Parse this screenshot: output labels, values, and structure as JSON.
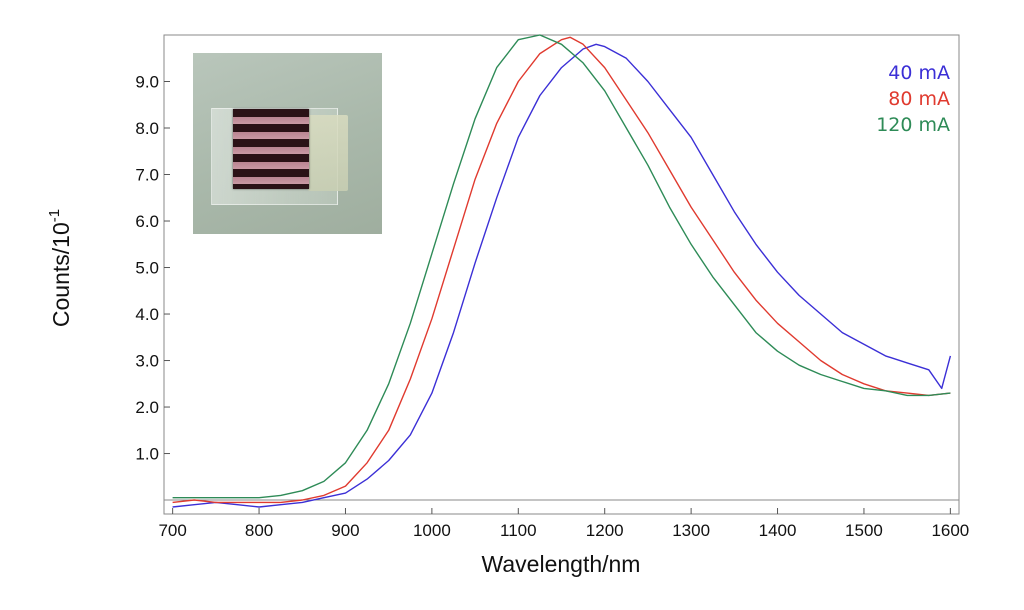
{
  "chart_data": {
    "type": "line",
    "xlabel": "Wavelength/nm",
    "ylabel_base": "Counts/10",
    "ylabel_exponent": "-1",
    "xlim": [
      690,
      1610
    ],
    "ylim": [
      -0.3,
      10.0
    ],
    "x_ticks": [
      700,
      800,
      900,
      1000,
      1100,
      1200,
      1300,
      1400,
      1500,
      1600
    ],
    "x_tick_labels": [
      "700",
      "800",
      "900",
      "1000",
      "1100",
      "1200",
      "1300",
      "1400",
      "1500",
      "1600"
    ],
    "y_ticks": [
      1,
      2,
      3,
      4,
      5,
      6,
      7,
      8,
      9
    ],
    "y_tick_labels": [
      "1.0",
      "2.0",
      "3.0",
      "4.0",
      "5.0",
      "6.0",
      "7.0",
      "8.0",
      "9.0"
    ],
    "baseline_y": 0,
    "legend_position": "top-right",
    "series": [
      {
        "name": "40 mA",
        "color": "#3b2fd6",
        "x": [
          700,
          725,
          750,
          775,
          800,
          825,
          850,
          875,
          900,
          925,
          950,
          975,
          1000,
          1025,
          1050,
          1075,
          1100,
          1125,
          1150,
          1175,
          1190,
          1200,
          1225,
          1250,
          1275,
          1300,
          1325,
          1350,
          1375,
          1400,
          1425,
          1450,
          1475,
          1500,
          1525,
          1550,
          1575,
          1590,
          1600
        ],
        "y": [
          -0.15,
          -0.1,
          -0.05,
          -0.1,
          -0.15,
          -0.1,
          -0.05,
          0.05,
          0.15,
          0.45,
          0.85,
          1.4,
          2.3,
          3.6,
          5.1,
          6.5,
          7.8,
          8.7,
          9.3,
          9.7,
          9.8,
          9.75,
          9.5,
          9.0,
          8.4,
          7.8,
          7.0,
          6.2,
          5.5,
          4.9,
          4.4,
          4.0,
          3.6,
          3.35,
          3.1,
          2.95,
          2.8,
          2.4,
          3.1
        ]
      },
      {
        "name": "80 mA",
        "color": "#e03a2f",
        "x": [
          700,
          725,
          750,
          775,
          800,
          825,
          850,
          875,
          900,
          925,
          950,
          975,
          1000,
          1025,
          1050,
          1075,
          1100,
          1125,
          1150,
          1160,
          1175,
          1200,
          1225,
          1250,
          1275,
          1300,
          1325,
          1350,
          1375,
          1400,
          1425,
          1450,
          1475,
          1500,
          1525,
          1550,
          1575,
          1600
        ],
        "y": [
          -0.05,
          0.0,
          -0.05,
          -0.05,
          -0.05,
          -0.05,
          0.0,
          0.1,
          0.3,
          0.8,
          1.5,
          2.6,
          3.9,
          5.4,
          6.9,
          8.1,
          9.0,
          9.6,
          9.9,
          9.95,
          9.8,
          9.3,
          8.6,
          7.9,
          7.1,
          6.3,
          5.6,
          4.9,
          4.3,
          3.8,
          3.4,
          3.0,
          2.7,
          2.5,
          2.35,
          2.3,
          2.25,
          2.3
        ]
      },
      {
        "name": "120 mA",
        "color": "#2e8b57",
        "x": [
          700,
          725,
          750,
          775,
          800,
          825,
          850,
          875,
          900,
          925,
          950,
          975,
          1000,
          1025,
          1050,
          1075,
          1100,
          1125,
          1150,
          1175,
          1200,
          1225,
          1250,
          1275,
          1300,
          1325,
          1350,
          1375,
          1400,
          1425,
          1450,
          1475,
          1500,
          1525,
          1550,
          1575,
          1600
        ],
        "y": [
          0.05,
          0.05,
          0.05,
          0.05,
          0.05,
          0.1,
          0.2,
          0.4,
          0.8,
          1.5,
          2.5,
          3.8,
          5.3,
          6.8,
          8.2,
          9.3,
          9.9,
          10.0,
          9.8,
          9.4,
          8.8,
          8.0,
          7.2,
          6.3,
          5.5,
          4.8,
          4.2,
          3.6,
          3.2,
          2.9,
          2.7,
          2.55,
          2.4,
          2.35,
          2.25,
          2.25,
          2.3
        ]
      }
    ]
  },
  "inset": {
    "description_icon": "device-photo-icon"
  }
}
